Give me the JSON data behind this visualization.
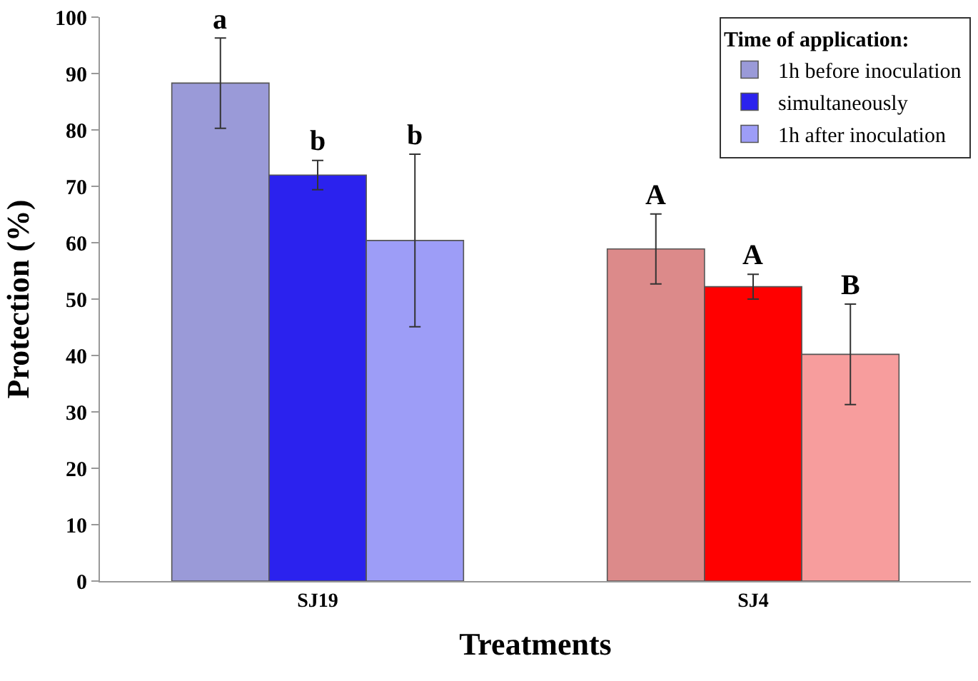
{
  "chart_data": {
    "type": "bar",
    "xlabel": "Treatments",
    "ylabel": "Protection (%)",
    "legend_title": "Time of application:",
    "legend": "top right",
    "categories": [
      "SJ19",
      "SJ4"
    ],
    "ylim": [
      0,
      100
    ],
    "yticks": [
      0,
      10,
      20,
      30,
      40,
      50,
      60,
      70,
      80,
      90,
      100
    ],
    "series": [
      {
        "name": "1h before inoculation",
        "colors": [
          "#9a9ad8",
          "#dc8a8a"
        ],
        "values": [
          88.3,
          58.9
        ],
        "errors": [
          8.0,
          6.2
        ],
        "value_labels": [
          "a",
          "A"
        ]
      },
      {
        "name": "simultaneously",
        "colors": [
          "#2b22ee",
          "#ff0000"
        ],
        "values": [
          72.0,
          52.2
        ],
        "errors": [
          2.6,
          2.2
        ],
        "value_labels": [
          "b",
          "A"
        ]
      },
      {
        "name": "1h after inoculation",
        "colors": [
          "#9d9df7",
          "#f79d9d"
        ],
        "values": [
          60.4,
          40.2
        ],
        "errors": [
          15.3,
          8.9
        ],
        "value_labels": [
          "b",
          "B"
        ]
      }
    ]
  }
}
